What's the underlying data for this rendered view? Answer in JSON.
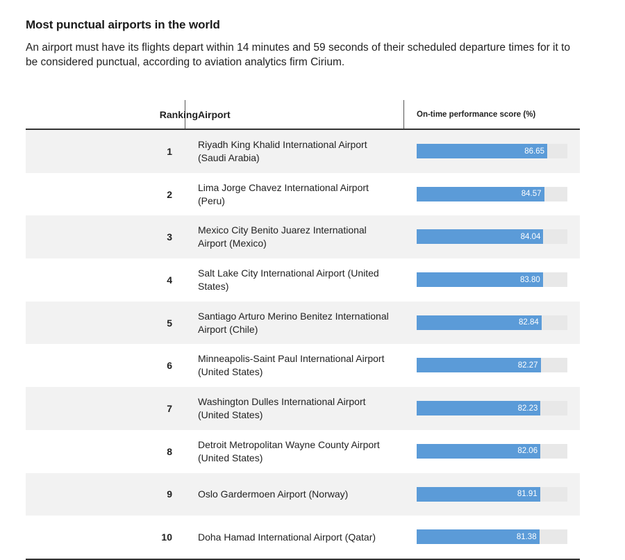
{
  "title": "Most punctual airports in the world",
  "subtitle": "An airport must have its flights depart within 14 minutes and 59 seconds of their scheduled departure times for it to be considered punctual, according to aviation analytics firm Cirium.",
  "colors": {
    "bar": "#5b9bd8",
    "track": "#e8e8e8",
    "row_shade": "#f2f2f2"
  },
  "chart_data": {
    "type": "table",
    "columns": [
      "Ranking",
      "Airport",
      "On-time performance score (%)"
    ],
    "bar_max": 100,
    "rows": [
      {
        "rank": "1",
        "airport": "Riyadh King Khalid International Airport (Saudi Arabia)",
        "score": 86.65,
        "label": "86.65"
      },
      {
        "rank": "2",
        "airport": "Lima Jorge Chavez International Airport (Peru)",
        "score": 84.57,
        "label": "84.57"
      },
      {
        "rank": "3",
        "airport": "Mexico City Benito Juarez International Airport (Mexico)",
        "score": 84.04,
        "label": "84.04"
      },
      {
        "rank": "4",
        "airport": "Salt Lake City International Airport (United States)",
        "score": 83.8,
        "label": "83.80"
      },
      {
        "rank": "5",
        "airport": "Santiago Arturo Merino Benitez International Airport (Chile)",
        "score": 82.84,
        "label": "82.84"
      },
      {
        "rank": "6",
        "airport": "Minneapolis-Saint Paul International Airport (United States)",
        "score": 82.27,
        "label": "82.27"
      },
      {
        "rank": "7",
        "airport": "Washington Dulles International Airport (United States)",
        "score": 82.23,
        "label": "82.23"
      },
      {
        "rank": "8",
        "airport": "Detroit Metropolitan Wayne County Airport (United States)",
        "score": 82.06,
        "label": "82.06"
      },
      {
        "rank": "9",
        "airport": "Oslo Gardermoen Airport (Norway)",
        "score": 81.91,
        "label": "81.91"
      },
      {
        "rank": "10",
        "airport": "Doha Hamad International Airport (Qatar)",
        "score": 81.38,
        "label": "81.38"
      }
    ]
  }
}
